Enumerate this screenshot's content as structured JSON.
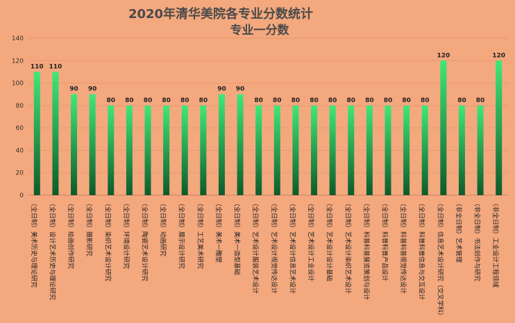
{
  "chart_data": {
    "type": "bar",
    "title": "2020年清华美院各专业分数统计",
    "subtitle": "专业一分数",
    "ylim": [
      0,
      140
    ],
    "yticks": [
      0,
      20,
      40,
      60,
      80,
      100,
      120,
      140
    ],
    "grid": true,
    "categories": [
      "（全日制）美术历史与理论研究",
      "（全日制）设计艺术历史与理论研究",
      "（全日制）绘画创作研究",
      "（全日制）摄影研究",
      "（全日制）染织艺术设计研究",
      "（全日制）环境设计研究",
      "（全日制）陶瓷艺术设计研究",
      "（全日制）动画研究",
      "（全日制）展示设计研究",
      "（全日制）工艺美术研究",
      "（全日制）美术一雕塑",
      "（全日制）美术一造型基础",
      "（全日制）艺术设计服装艺术设计",
      "（全日制）艺术设计视觉传达设计",
      "（全日制）艺术设计信息艺术设计",
      "（全日制）艺术设计工业设计",
      "（全日制）艺术设计设计基础",
      "（全日制）艺术设计染织艺术设计",
      "（全日制）科普科普展览策划与设计",
      "（全日制）科普科普产品设计",
      "（全日制）科普科普视觉传达设计",
      "（全日制）科普科普信息与交互设计",
      "（全日制）信息艺术设计研究（交叉学科）",
      "（非全日制）艺术管理",
      "（非全日制）书法创作与研究",
      "（非全日制）工业设计工程领域"
    ],
    "values": [
      110,
      110,
      90,
      90,
      80,
      80,
      80,
      80,
      80,
      80,
      90,
      90,
      80,
      80,
      80,
      80,
      80,
      80,
      80,
      80,
      80,
      80,
      120,
      80,
      80,
      120
    ],
    "data_labels": [
      "110",
      "110",
      "90",
      "90",
      "80",
      "80",
      "80",
      "80",
      "80",
      "80",
      "90",
      "90",
      "80",
      "80",
      "80",
      "80",
      "80",
      "80",
      "80",
      "80",
      "80",
      "80",
      "120",
      "80",
      "80",
      "120"
    ],
    "colors": {
      "background": "#f4a87e",
      "bar_top": "#3ee878",
      "bar_bottom": "#0e5a2a",
      "grid": "#e89a72",
      "axis": "#c88562"
    }
  }
}
